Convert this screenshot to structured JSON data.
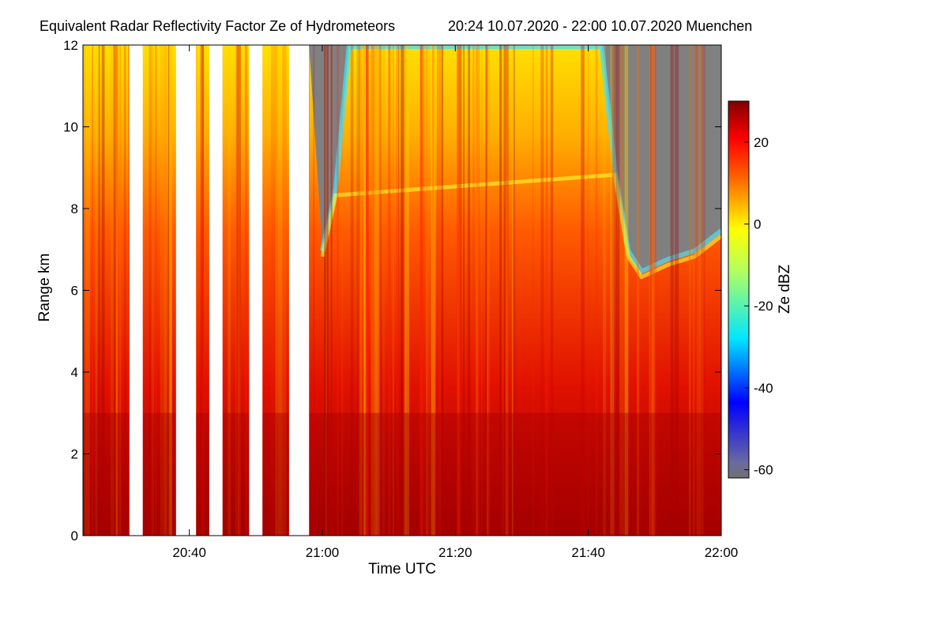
{
  "chart_data": {
    "type": "heatmap",
    "title": "Equivalent Radar Reflectivity Factor Ze of Hydrometeors",
    "subtitle": "20:24 10.07.2020 - 22:00 10.07.2020 Muenchen",
    "xlabel": "Time UTC",
    "ylabel": "Range km",
    "xlim": [
      "20:24",
      "22:00"
    ],
    "ylim": [
      0,
      12
    ],
    "x_tick_labels": [
      "20:40",
      "21:00",
      "21:20",
      "21:40",
      "22:00"
    ],
    "y_tick_labels": [
      "0",
      "2",
      "4",
      "6",
      "8",
      "10",
      "12"
    ],
    "colorbar": {
      "label": "Ze dBZ",
      "range": [
        -62,
        30
      ],
      "tick_labels": [
        "20",
        "0",
        "-20",
        "-40",
        "-60"
      ],
      "tick_values": [
        20,
        0,
        -20,
        -40,
        -60
      ],
      "colors": [
        "#707070",
        "#0000ff",
        "#00ffff",
        "#ffff00",
        "#ff0000",
        "#800000"
      ]
    },
    "no_data_color": "#ffffff",
    "below_threshold_color": "#808080",
    "data_gaps_utc": [
      [
        "20:31",
        "20:33"
      ],
      [
        "20:38",
        "20:41"
      ],
      [
        "20:43",
        "20:45"
      ],
      [
        "20:49",
        "20:51"
      ],
      [
        "20:55",
        "20:58"
      ]
    ],
    "echo_tops_km": [
      {
        "time": "20:24",
        "top": 12
      },
      {
        "time": "20:58",
        "top": 12
      },
      {
        "time": "21:00",
        "top": 7
      },
      {
        "time": "21:02",
        "top": 8.5
      },
      {
        "time": "21:04",
        "top": 12
      },
      {
        "time": "21:42",
        "top": 12
      },
      {
        "time": "21:44",
        "top": 9
      },
      {
        "time": "21:46",
        "top": 7
      },
      {
        "time": "21:48",
        "top": 6.5
      },
      {
        "time": "21:52",
        "top": 6.8
      },
      {
        "time": "21:56",
        "top": 7
      },
      {
        "time": "22:00",
        "top": 7.5
      }
    ],
    "grid": false,
    "legend": "colorbar-right"
  }
}
